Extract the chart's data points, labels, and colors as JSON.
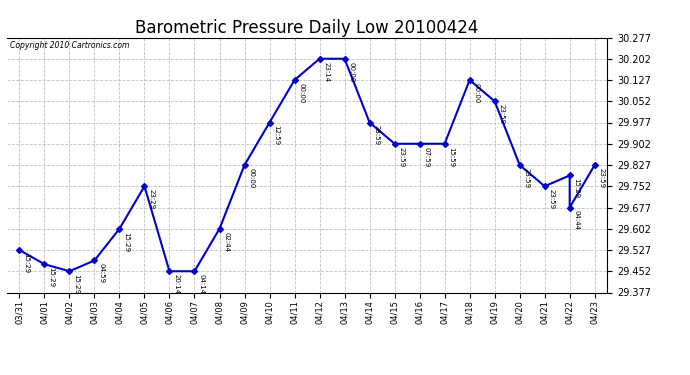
{
  "title": "Barometric Pressure Daily Low 20100424",
  "copyright": "Copyright 2010 Cartronics.com",
  "y_ticks": [
    29.377,
    29.452,
    29.527,
    29.602,
    29.677,
    29.752,
    29.827,
    29.902,
    29.977,
    30.052,
    30.127,
    30.202,
    30.277
  ],
  "x_labels": [
    "03/31",
    "04/01",
    "04/02",
    "04/03",
    "04/04",
    "04/05",
    "04/06",
    "04/07",
    "04/08",
    "04/09",
    "04/10",
    "04/11",
    "04/12",
    "04/13",
    "04/14",
    "04/15",
    "04/16",
    "04/17",
    "04/18",
    "04/19",
    "04/20",
    "04/21",
    "04/22",
    "04/23"
  ],
  "chart_data": [
    [
      0,
      29.527,
      "15:29"
    ],
    [
      1,
      29.477,
      "15:29"
    ],
    [
      2,
      29.452,
      "15:29"
    ],
    [
      3,
      29.49,
      "04:59"
    ],
    [
      4,
      29.602,
      "15:29"
    ],
    [
      5,
      29.752,
      "23:29"
    ],
    [
      6,
      29.452,
      "20:14"
    ],
    [
      7,
      29.452,
      "04:14"
    ],
    [
      8,
      29.602,
      "02:44"
    ],
    [
      9,
      29.827,
      "00:00"
    ],
    [
      10,
      29.977,
      "12:59"
    ],
    [
      11,
      30.127,
      "00:00"
    ],
    [
      12,
      30.202,
      "23:14"
    ],
    [
      13,
      30.202,
      "00:00"
    ],
    [
      14,
      29.977,
      "23:59"
    ],
    [
      15,
      29.902,
      "23:59"
    ],
    [
      16,
      29.902,
      "07:59"
    ],
    [
      17,
      29.902,
      "15:59"
    ],
    [
      18,
      30.127,
      "00:00"
    ],
    [
      19,
      30.052,
      "23:59"
    ],
    [
      20,
      29.827,
      "23:59"
    ],
    [
      21,
      29.752,
      "23:59"
    ],
    [
      22,
      29.79,
      "15:29"
    ],
    [
      22,
      29.677,
      "04:44"
    ],
    [
      23,
      29.827,
      "23:59"
    ]
  ],
  "line_color": "#0000CC",
  "marker_color": "#0000CC",
  "background_color": "#FFFFFF",
  "grid_color": "#C0C0C0",
  "title_fontsize": 12,
  "ylim_min": 29.377,
  "ylim_max": 30.277
}
